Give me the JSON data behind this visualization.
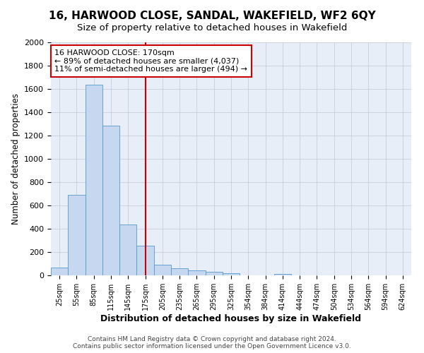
{
  "title_line1": "16, HARWOOD CLOSE, SANDAL, WAKEFIELD, WF2 6QY",
  "title_line2": "Size of property relative to detached houses in Wakefield",
  "xlabel": "Distribution of detached houses by size in Wakefield",
  "ylabel": "Number of detached properties",
  "bar_labels": [
    "25sqm",
    "55sqm",
    "85sqm",
    "115sqm",
    "145sqm",
    "175sqm",
    "205sqm",
    "235sqm",
    "265sqm",
    "295sqm",
    "325sqm",
    "354sqm",
    "384sqm",
    "414sqm",
    "444sqm",
    "474sqm",
    "504sqm",
    "534sqm",
    "564sqm",
    "594sqm",
    "624sqm"
  ],
  "bar_values": [
    65,
    690,
    1635,
    1285,
    435,
    255,
    90,
    60,
    40,
    30,
    20,
    0,
    0,
    15,
    0,
    0,
    0,
    0,
    0,
    0,
    0
  ],
  "bar_color": "#c5d8f0",
  "bar_edge_color": "#5599cc",
  "vline_x": 5,
  "vline_color": "#cc0000",
  "annotation_line1": "16 HARWOOD CLOSE: 170sqm",
  "annotation_line2": "← 89% of detached houses are smaller (4,037)",
  "annotation_line3": "11% of semi-detached houses are larger (494) →",
  "annotation_box_color": "#ffffff",
  "annotation_box_edge": "#cc0000",
  "ylim_max": 2000,
  "yticks": [
    0,
    200,
    400,
    600,
    800,
    1000,
    1200,
    1400,
    1600,
    1800,
    2000
  ],
  "footer_line1": "Contains HM Land Registry data © Crown copyright and database right 2024.",
  "footer_line2": "Contains public sector information licensed under the Open Government Licence v3.0.",
  "bg_color": "#ffffff",
  "plot_bg_color": "#e8eef8",
  "grid_color": "#c0c8d8"
}
